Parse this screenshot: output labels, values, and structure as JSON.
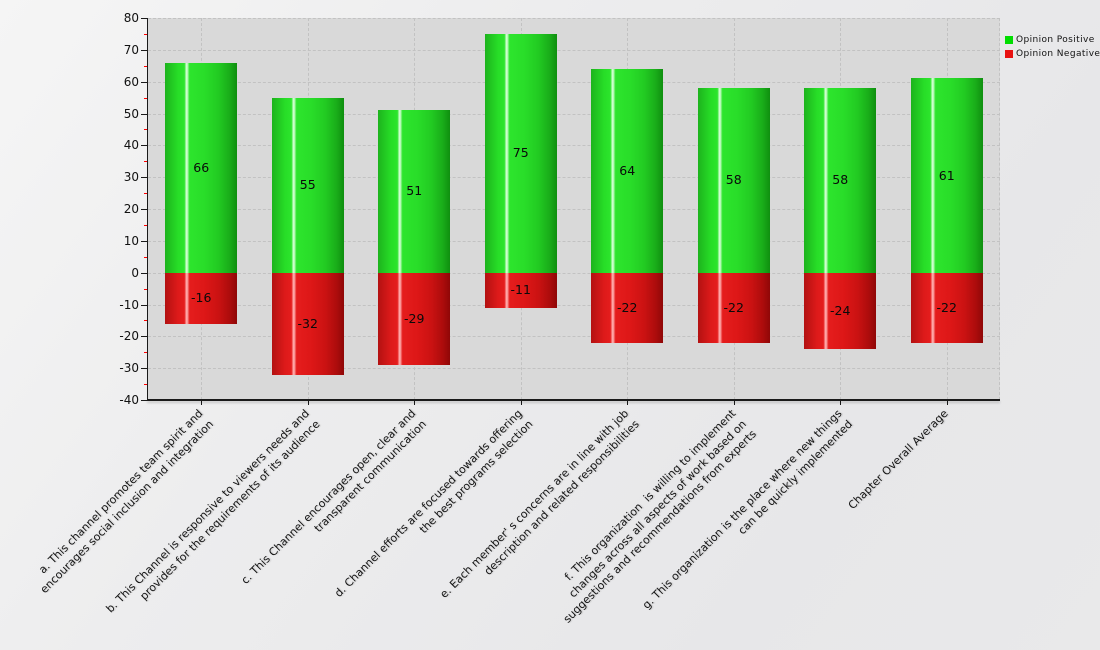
{
  "chart_data": {
    "type": "bar",
    "title": "",
    "xlabel": "",
    "ylabel": "",
    "categories": [
      "a. This channel promotes team spirit and\nencourages social inclusion and integration",
      "b. This Channel is responsive to viewers needs and\nprovides for the requirements of its audience",
      "c. This Channel encourages open, clear and\ntransparent communication",
      "d. Channel efforts are focused towards offering\nthe best programs selection",
      "e. Each member' s concerns are in line with job\ndescription and related responsibilities",
      "f. This organization  is willing to implement\nchanges across all aspects of work based on\nsuggestions and recommendations from experts",
      "g. This organization is the place where new things\ncan be quickly implemented",
      "Chapter Overall Average"
    ],
    "series": [
      {
        "name": "Opinion Positive",
        "color": "#00dd00",
        "values": [
          66,
          55,
          51,
          75,
          64,
          58,
          58,
          61
        ]
      },
      {
        "name": "Opinion Negative",
        "color": "#e81111",
        "values": [
          -16,
          -32,
          -29,
          -11,
          -22,
          -22,
          -24,
          -22
        ]
      }
    ],
    "ylim": [
      -40,
      80
    ],
    "y_major_step": 10,
    "y_minor_step": 5,
    "grid": "dashed",
    "legend_position": "top-right",
    "bar_labels_visible": true
  }
}
